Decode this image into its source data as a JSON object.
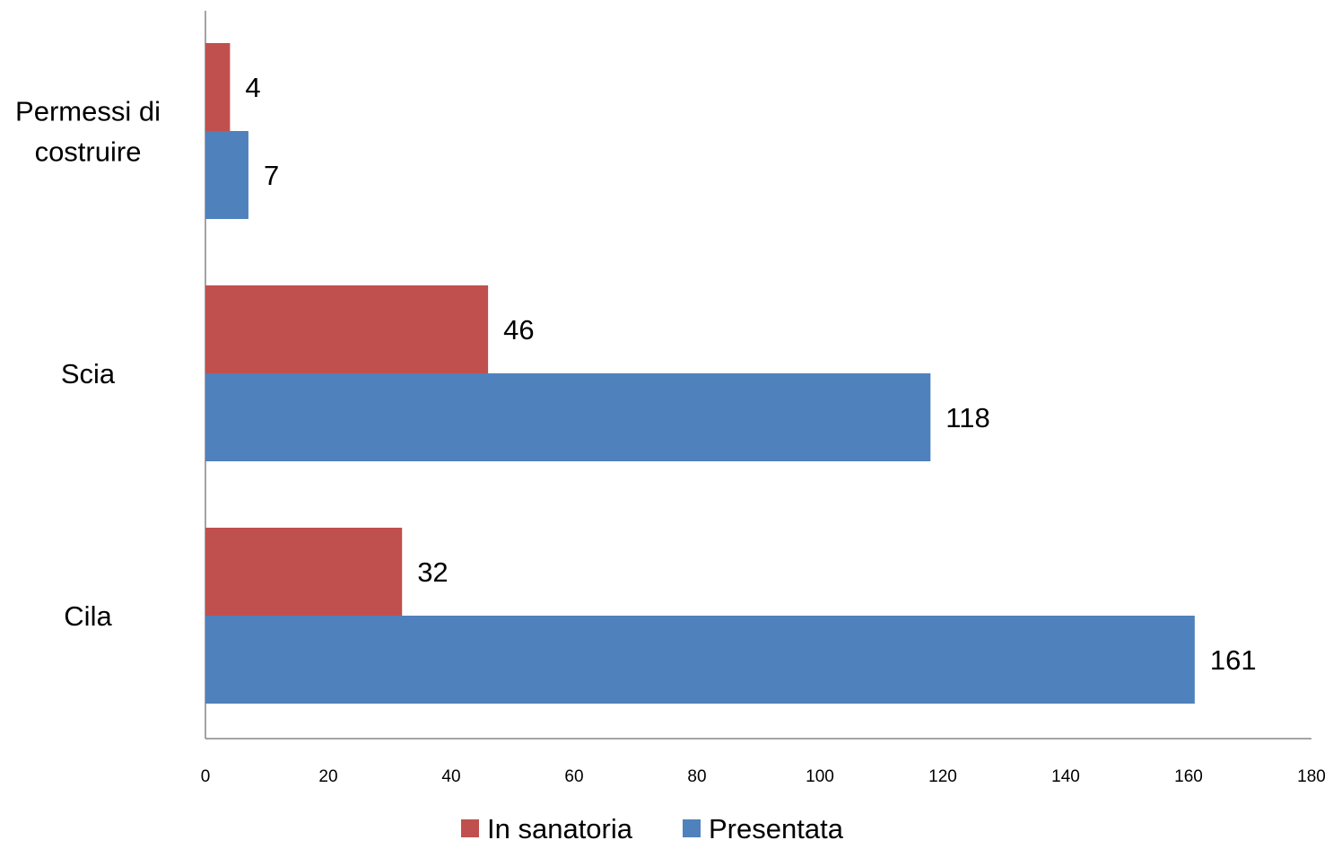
{
  "chart_data": {
    "type": "bar",
    "orientation": "horizontal",
    "title": "",
    "xlabel": "",
    "ylabel": "",
    "categories": [
      "Permessi di costruire",
      "Scia",
      "Cila"
    ],
    "category_lines": [
      [
        "Permessi di",
        "costruire"
      ],
      [
        "Scia"
      ],
      [
        "Cila"
      ]
    ],
    "series": [
      {
        "name": "In sanatoria",
        "values": [
          4,
          46,
          32
        ],
        "color": "#C0504D"
      },
      {
        "name": "Presentata",
        "values": [
          7,
          118,
          161
        ],
        "color": "#4F81BD"
      }
    ],
    "xlim": [
      0,
      180
    ],
    "xticks": [
      "0",
      "20",
      "40",
      "60",
      "80",
      "100",
      "120",
      "140",
      "160",
      "180"
    ],
    "grid": false,
    "data_labels": true,
    "legend": {
      "position": "bottom",
      "items": [
        "In sanatoria",
        "Presentata"
      ]
    }
  }
}
